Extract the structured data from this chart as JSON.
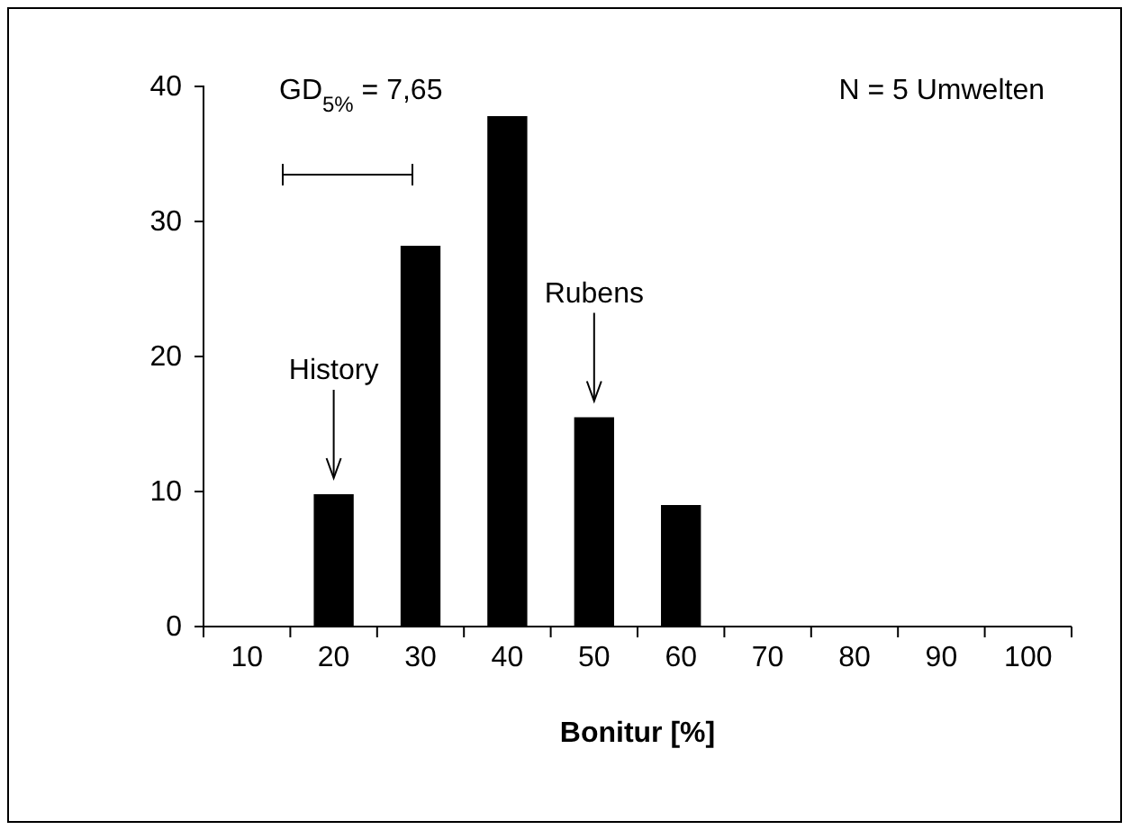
{
  "chart_data": {
    "type": "bar",
    "xlabel": "Bonitur [%]",
    "categories": [
      "10",
      "20",
      "30",
      "40",
      "50",
      "60",
      "70",
      "80",
      "90",
      "100"
    ],
    "values": [
      null,
      9.8,
      28.2,
      37.8,
      15.5,
      9,
      null,
      null,
      null,
      null
    ],
    "color": "#000000",
    "ylim": [
      0,
      40
    ],
    "yticks": [
      0,
      10,
      20,
      30,
      40
    ],
    "grid": false,
    "annotations": [
      "GD$_{5%}$ = 7,65",
      "N = 5 Umwelten",
      "History",
      "Rubens"
    ]
  }
}
